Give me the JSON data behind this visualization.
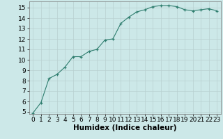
{
  "x": [
    0,
    1,
    2,
    3,
    4,
    5,
    6,
    7,
    8,
    9,
    10,
    11,
    12,
    13,
    14,
    15,
    16,
    17,
    18,
    19,
    20,
    21,
    22,
    23
  ],
  "y": [
    4.9,
    5.9,
    8.2,
    8.6,
    9.3,
    10.3,
    10.3,
    10.8,
    11.0,
    11.9,
    12.0,
    13.5,
    14.1,
    14.6,
    14.8,
    15.1,
    15.2,
    15.2,
    15.1,
    14.8,
    14.7,
    14.8,
    14.9,
    14.7
  ],
  "xlabel": "Humidex (Indice chaleur)",
  "ylim": [
    4.8,
    15.6
  ],
  "xlim": [
    -0.5,
    23.5
  ],
  "yticks": [
    5,
    6,
    7,
    8,
    9,
    10,
    11,
    12,
    13,
    14,
    15
  ],
  "xticks": [
    0,
    1,
    2,
    3,
    4,
    5,
    6,
    7,
    8,
    9,
    10,
    11,
    12,
    13,
    14,
    15,
    16,
    17,
    18,
    19,
    20,
    21,
    22,
    23
  ],
  "line_color": "#2e7d6e",
  "marker": "+",
  "bg_color": "#cce8e8",
  "grid_color": "#b8d0d0",
  "xlabel_fontsize": 7.5,
  "tick_fontsize": 6.5
}
